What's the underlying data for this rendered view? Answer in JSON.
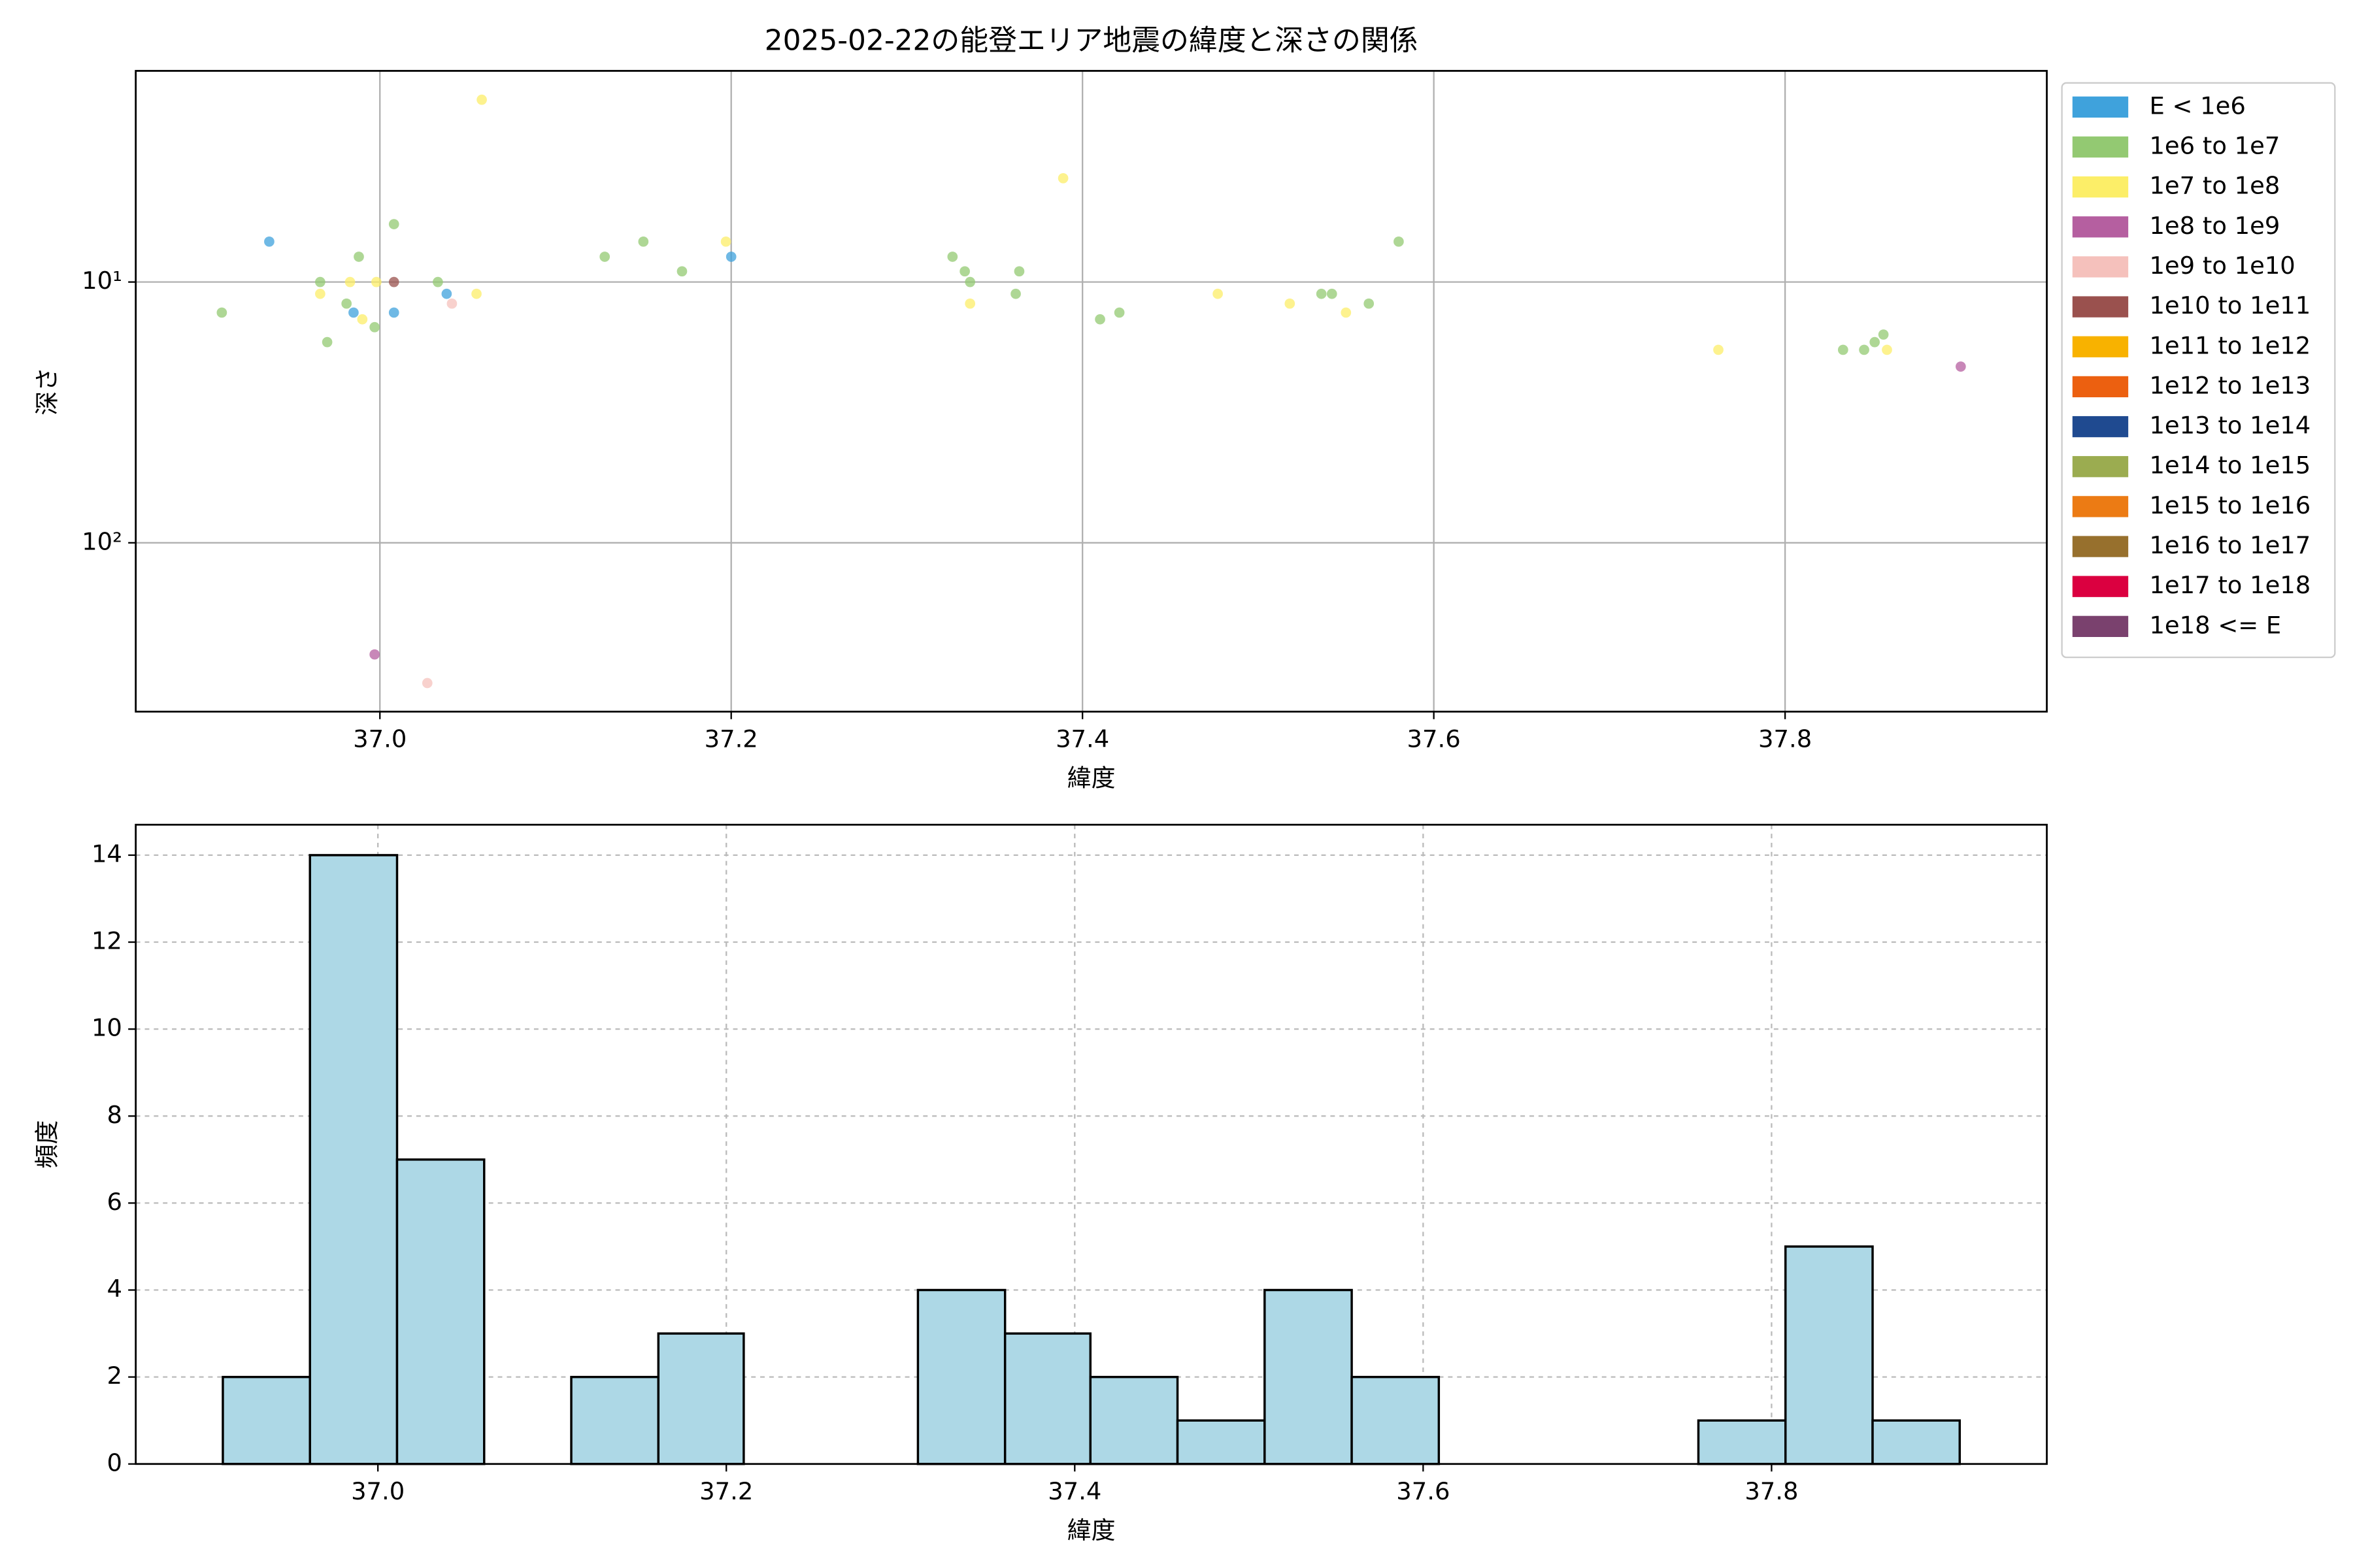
{
  "chart_data": [
    {
      "type": "scatter",
      "title": "2025-02-22の能登エリア地震の緯度と深さの関係",
      "xlabel": "緯度",
      "ylabel": "深さ",
      "xlim": [
        36.861,
        37.949
      ],
      "xticks": [
        {
          "value": 37,
          "label": "37.0"
        },
        37.2,
        37.4,
        37.6,
        37.8
      ],
      "ylim": [
        1.55,
        444
      ],
      "yticks": [
        {
          "value": 10,
          "label": "10¹"
        },
        {
          "value": 100,
          "label": "10²"
        }
      ],
      "log_y": true,
      "invert_y": true,
      "grid": true,
      "legend": "outside right",
      "series": [
        {
          "name": "E < 1e6",
          "color": "#3fa2dc",
          "x": [
            36.937,
            36.985,
            37.008,
            37.038,
            37.2
          ],
          "values": [
            7.0,
            13.1,
            13.1,
            11.1,
            8.0
          ]
        },
        {
          "name": "1e6 to 1e7",
          "color": "#93c972",
          "x": [
            36.91,
            36.966,
            36.97,
            36.981,
            36.988,
            36.997,
            37.008,
            37.033,
            37.128,
            37.15,
            37.172,
            37.326,
            37.333,
            37.336,
            37.362,
            37.364,
            37.41,
            37.421,
            37.536,
            37.542,
            37.563,
            37.58,
            37.833,
            37.845,
            37.851,
            37.856
          ],
          "values": [
            13.1,
            10,
            17.0,
            12.1,
            8.0,
            14.9,
            6.0,
            10,
            8.0,
            7.0,
            9.1,
            8.0,
            9.1,
            10,
            11.1,
            9.1,
            13.9,
            13.1,
            11.1,
            11.1,
            12.1,
            7.0,
            18.2,
            18.2,
            17.0,
            15.9
          ]
        },
        {
          "name": "1e7 to 1e8",
          "color": "#fcee68",
          "x": [
            37.058,
            36.966,
            36.983,
            36.99,
            36.998,
            37.055,
            37.197,
            37.336,
            37.389,
            37.477,
            37.518,
            37.55,
            37.762,
            37.858
          ],
          "values": [
            2.0,
            11.1,
            10,
            13.9,
            10,
            11.1,
            7.0,
            12.1,
            4.0,
            11.1,
            12.1,
            13.1,
            18.2,
            18.2
          ]
        },
        {
          "name": "1e8 to 1e9",
          "color": "#b55fa0",
          "x": [
            36.997,
            37.9
          ],
          "values": [
            268,
            21.1
          ]
        },
        {
          "name": "1e9 to 1e10",
          "color": "#f5c1bc",
          "x": [
            37.027,
            37.041
          ],
          "values": [
            345,
            12.1
          ]
        },
        {
          "name": "1e10 to 1e11",
          "color": "#9a514e",
          "x": [
            37.008
          ],
          "values": [
            10
          ]
        },
        {
          "name": "1e11 to 1e12",
          "color": "#f8b200",
          "x": [],
          "values": []
        },
        {
          "name": "1e12 to 1e13",
          "color": "#ec6010",
          "x": [],
          "values": []
        },
        {
          "name": "1e13 to 1e14",
          "color": "#1f4a90",
          "x": [],
          "values": []
        },
        {
          "name": "1e14 to 1e15",
          "color": "#9bac50",
          "x": [],
          "values": []
        },
        {
          "name": "1e15 to 1e16",
          "color": "#ec7b14",
          "x": [],
          "values": []
        },
        {
          "name": "1e16 to 1e17",
          "color": "#97702d",
          "x": [],
          "values": []
        },
        {
          "name": "1e17 to 1e18",
          "color": "#db0040",
          "x": [],
          "values": []
        },
        {
          "name": "1e18 <= E",
          "color": "#7a416e",
          "x": [],
          "values": []
        }
      ]
    },
    {
      "type": "histogram",
      "xlabel": "緯度",
      "ylabel": "頻度",
      "xlim": [
        36.861,
        37.958
      ],
      "xticks": [
        {
          "value": 37,
          "label": "37.0"
        },
        37.2,
        37.4,
        37.6,
        37.8
      ],
      "ylim": [
        0,
        14.7
      ],
      "yticks": [
        0,
        2,
        4,
        6,
        8,
        10,
        12,
        14
      ],
      "grid": true,
      "color": "#add8e6",
      "edgecolor": "#000000",
      "bins": [
        36.911,
        36.961,
        37.011,
        37.061,
        37.111,
        37.161,
        37.21,
        37.26,
        37.31,
        37.36,
        37.409,
        37.459,
        37.509,
        37.559,
        37.609,
        37.659,
        37.708,
        37.758,
        37.808,
        37.858,
        37.908
      ],
      "values": [
        2,
        14,
        7,
        0,
        2,
        3,
        0,
        0,
        4,
        3,
        2,
        1,
        4,
        2,
        0,
        0,
        0,
        1,
        5,
        1
      ]
    }
  ]
}
